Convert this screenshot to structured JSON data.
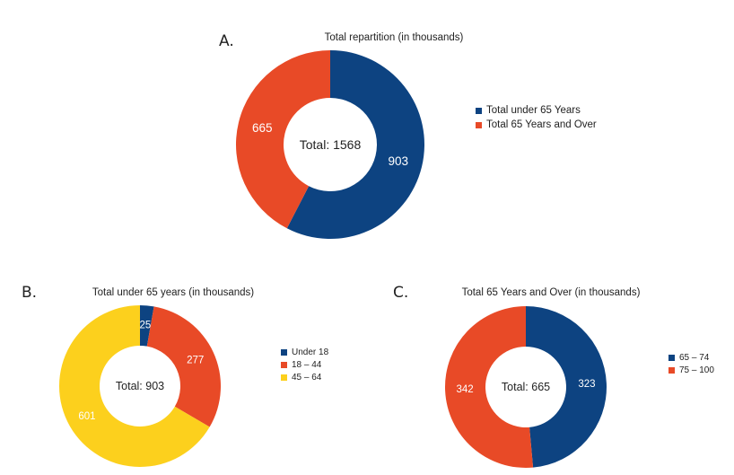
{
  "colors": {
    "dark_blue": "#0d4381",
    "orange": "#e84a27",
    "yellow": "#fcd01d"
  },
  "chart_data": [
    {
      "type": "pie",
      "panel": "A.",
      "title": "Total repartition (in thousands)",
      "center_label": "Total: 1568",
      "categories": [
        "Total under 65 Years",
        "Total 65 Years and Over"
      ],
      "values": [
        903,
        665
      ],
      "value_labels": [
        "903",
        "665"
      ],
      "colors": [
        "#0d4381",
        "#e84a27"
      ],
      "legend_position": "right"
    },
    {
      "type": "pie",
      "panel": "B.",
      "title": "Total under 65 years (in thousands)",
      "center_label": "Total: 903",
      "categories": [
        "Under 18",
        "18 – 44",
        "45 – 64"
      ],
      "values": [
        25,
        277,
        601
      ],
      "value_labels": [
        "25",
        "277",
        "601"
      ],
      "colors": [
        "#0d4381",
        "#e84a27",
        "#fcd01d"
      ],
      "legend_position": "right"
    },
    {
      "type": "pie",
      "panel": "C.",
      "title": "Total 65 Years and Over (in thousands)",
      "center_label": "Total: 665",
      "categories": [
        "65 – 74",
        "75 – 100"
      ],
      "values": [
        323,
        342
      ],
      "value_labels": [
        "323",
        "342"
      ],
      "colors": [
        "#0d4381",
        "#e84a27"
      ],
      "legend_position": "right"
    }
  ]
}
